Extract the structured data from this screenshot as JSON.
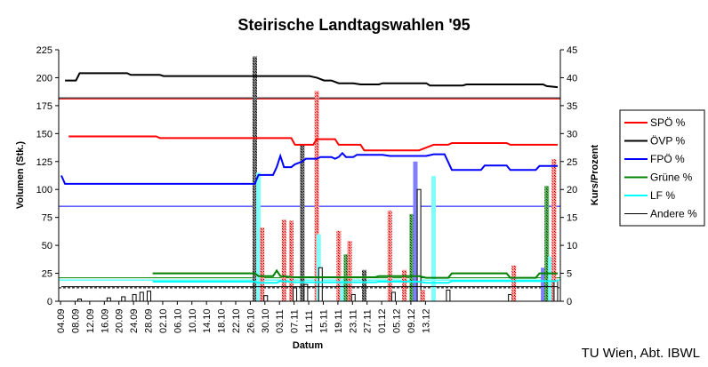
{
  "chart_data": {
    "type": "line",
    "title": "Steirische Landtagswahlen '95",
    "xlabel": "Datum",
    "ylabel_left": "Volumen (Stk.)",
    "ylabel_right": "Kurs/Prozent",
    "credit": "TU Wien, Abt. IBWL",
    "ylim_left": [
      0,
      225
    ],
    "ylim_right": [
      0,
      45
    ],
    "yticks_left": [
      "0",
      "25",
      "50",
      "75",
      "100",
      "125",
      "150",
      "175",
      "200",
      "225"
    ],
    "yticks_right": [
      "0",
      "5",
      "10",
      "15",
      "20",
      "25",
      "30",
      "35",
      "40",
      "45"
    ],
    "xticks": [
      "04.09",
      "08.09",
      "12.09",
      "16.09",
      "20.09",
      "24.09",
      "28.09",
      "02.10",
      "06.10",
      "10.10",
      "14.10",
      "18.10",
      "22.10",
      "26.10",
      "30.10",
      "03.11",
      "07.11",
      "11.11",
      "15.11",
      "19.11",
      "23.11",
      "27.11",
      "01.12",
      "05.12",
      "09.12",
      "13.12"
    ],
    "legend_position": "right",
    "legend": [
      "SPÖ %",
      "ÖVP %",
      "FPÖ %",
      "Grüne %",
      "LF %",
      "Andere %"
    ],
    "colors": {
      "SPÖ": "#ff0000",
      "ÖVP": "#000000",
      "FPÖ": "#0000ff",
      "Grüne": "#008000",
      "LF": "#00ffff",
      "Andere": "#000000"
    },
    "series": [
      {
        "name": "SPÖ %",
        "key": "SPÖ",
        "points": [
          [
            2,
            29.5
          ],
          [
            26,
            29.5
          ],
          [
            27,
            29.2
          ],
          [
            63,
            29.2
          ],
          [
            64,
            28
          ],
          [
            69,
            28
          ],
          [
            70,
            29
          ],
          [
            75,
            29
          ],
          [
            76,
            28
          ],
          [
            82,
            28
          ],
          [
            83,
            27
          ],
          [
            98,
            27
          ],
          [
            100,
            27.5
          ],
          [
            102,
            28
          ],
          [
            106,
            28
          ],
          [
            107,
            28.3
          ],
          [
            122,
            28.3
          ],
          [
            123,
            28
          ],
          [
            136,
            28
          ]
        ]
      },
      {
        "name": "ÖVP %",
        "key": "ÖVP",
        "points": [
          [
            1,
            39.5
          ],
          [
            4,
            39.5
          ],
          [
            5,
            40.8
          ],
          [
            18,
            40.8
          ],
          [
            19,
            40.5
          ],
          [
            27,
            40.5
          ],
          [
            28,
            40.3
          ],
          [
            68,
            40.3
          ],
          [
            70,
            40
          ],
          [
            72,
            39.5
          ],
          [
            74,
            39.5
          ],
          [
            76,
            39
          ],
          [
            80,
            39
          ],
          [
            82,
            38.8
          ],
          [
            87,
            38.8
          ],
          [
            88,
            39
          ],
          [
            100,
            39
          ],
          [
            101,
            38.6
          ],
          [
            110,
            38.6
          ],
          [
            111,
            38.8
          ],
          [
            132,
            38.8
          ],
          [
            133,
            38.5
          ],
          [
            136,
            38.3
          ]
        ]
      },
      {
        "name": "FPÖ %",
        "key": "FPÖ",
        "points": [
          [
            0,
            22.5
          ],
          [
            1,
            21
          ],
          [
            53,
            21
          ],
          [
            54,
            22.6
          ],
          [
            58,
            22.6
          ],
          [
            59,
            24
          ],
          [
            60,
            26
          ],
          [
            61,
            24
          ],
          [
            63,
            24
          ],
          [
            64,
            24.5
          ],
          [
            66,
            25
          ],
          [
            67,
            25.5
          ],
          [
            70,
            25.5
          ],
          [
            71,
            25.8
          ],
          [
            74,
            25.8
          ],
          [
            75,
            25.5
          ],
          [
            76,
            25.8
          ],
          [
            77,
            26.5
          ],
          [
            78,
            25.8
          ],
          [
            80,
            25.8
          ],
          [
            81,
            26.2
          ],
          [
            88,
            26.2
          ],
          [
            90,
            26
          ],
          [
            100,
            26
          ],
          [
            102,
            26.3
          ],
          [
            105,
            26.3
          ],
          [
            107,
            23.5
          ],
          [
            115,
            23.5
          ],
          [
            116,
            24.3
          ],
          [
            122,
            24.3
          ],
          [
            123,
            23.5
          ],
          [
            130,
            23.5
          ],
          [
            131,
            24.2
          ],
          [
            136,
            24.2
          ]
        ]
      },
      {
        "name": "Grüne %",
        "key": "Grüne",
        "points": [
          [
            25,
            5
          ],
          [
            53,
            5
          ],
          [
            54,
            4.5
          ],
          [
            58,
            4.5
          ],
          [
            59,
            5.5
          ],
          [
            60,
            4.5
          ],
          [
            64,
            4.3
          ],
          [
            86,
            4.3
          ],
          [
            87,
            4.5
          ],
          [
            98,
            4.5
          ],
          [
            100,
            4.2
          ],
          [
            106,
            4.2
          ],
          [
            107,
            5
          ],
          [
            122,
            5
          ],
          [
            123,
            4.2
          ],
          [
            130,
            4.2
          ],
          [
            131,
            5
          ],
          [
            136,
            5
          ]
        ]
      },
      {
        "name": "LF %",
        "key": "LF",
        "points": [
          [
            25,
            3.5
          ],
          [
            53,
            3.5
          ],
          [
            54,
            3.3
          ],
          [
            59,
            3.3
          ],
          [
            60,
            3.6
          ],
          [
            64,
            3.4
          ],
          [
            86,
            3.4
          ],
          [
            87,
            3.5
          ],
          [
            98,
            3.5
          ],
          [
            100,
            3.3
          ],
          [
            106,
            3.3
          ],
          [
            107,
            3.6
          ],
          [
            136,
            3.6
          ]
        ]
      },
      {
        "name": "Andere %",
        "key": "Andere",
        "points": [
          [
            0,
            2.6
          ],
          [
            136,
            2.6
          ]
        ]
      }
    ],
    "reference_lines_left_axis": [
      {
        "value": 181,
        "color": "#ff0000"
      },
      {
        "value": 182,
        "color": "#000000"
      },
      {
        "value": 85,
        "color": "#0000ff"
      },
      {
        "value": 21,
        "color": "#008000"
      },
      {
        "value": 19,
        "color": "#00ffff"
      },
      {
        "value": 12,
        "color": "#000000",
        "dashed": true
      }
    ],
    "volume_bars": [
      {
        "x": 5,
        "key": "Andere",
        "value": 2
      },
      {
        "x": 13,
        "key": "Andere",
        "value": 3
      },
      {
        "x": 17,
        "key": "Andere",
        "value": 4
      },
      {
        "x": 20,
        "key": "Andere",
        "value": 6
      },
      {
        "x": 22,
        "key": "Andere",
        "value": 8
      },
      {
        "x": 24,
        "key": "Andere",
        "value": 9
      },
      {
        "x": 53,
        "key": "ÖVP",
        "value": 219
      },
      {
        "x": 54,
        "key": "LF",
        "value": 115
      },
      {
        "x": 55,
        "key": "SPÖ",
        "value": 66
      },
      {
        "x": 56,
        "key": "Andere",
        "value": 5
      },
      {
        "x": 61,
        "key": "SPÖ",
        "value": 73
      },
      {
        "x": 63,
        "key": "SPÖ",
        "value": 72
      },
      {
        "x": 64,
        "key": "Andere",
        "value": 12
      },
      {
        "x": 66,
        "key": "ÖVP",
        "value": 140
      },
      {
        "x": 67,
        "key": "Andere",
        "value": 15
      },
      {
        "x": 70,
        "key": "SPÖ",
        "value": 188
      },
      {
        "x": 70.5,
        "key": "LF",
        "value": 60
      },
      {
        "x": 71,
        "key": "Andere",
        "value": 30
      },
      {
        "x": 76,
        "key": "SPÖ",
        "value": 63
      },
      {
        "x": 77,
        "key": "LF",
        "value": 20
      },
      {
        "x": 78,
        "key": "Grüne",
        "value": 42
      },
      {
        "x": 79,
        "key": "SPÖ",
        "value": 54
      },
      {
        "x": 80,
        "key": "Andere",
        "value": 6
      },
      {
        "x": 83,
        "key": "ÖVP",
        "value": 28
      },
      {
        "x": 90,
        "key": "SPÖ",
        "value": 81
      },
      {
        "x": 91,
        "key": "Andere",
        "value": 8
      },
      {
        "x": 94,
        "key": "SPÖ",
        "value": 28
      },
      {
        "x": 96,
        "key": "Grüne",
        "value": 78
      },
      {
        "x": 97,
        "key": "FPÖ",
        "value": 125
      },
      {
        "x": 98,
        "key": "Andere",
        "value": 100
      },
      {
        "x": 99,
        "key": "SPÖ",
        "value": 10
      },
      {
        "x": 102,
        "key": "LF",
        "value": 112
      },
      {
        "x": 106,
        "key": "Andere",
        "value": 10
      },
      {
        "x": 123,
        "key": "Andere",
        "value": 6
      },
      {
        "x": 124,
        "key": "SPÖ",
        "value": 32
      },
      {
        "x": 132,
        "key": "FPÖ",
        "value": 30
      },
      {
        "x": 133,
        "key": "Grüne",
        "value": 103
      },
      {
        "x": 134,
        "key": "LF",
        "value": 40
      },
      {
        "x": 135,
        "key": "SPÖ",
        "value": 127
      },
      {
        "x": 135.5,
        "key": "Andere",
        "value": 18
      }
    ]
  }
}
